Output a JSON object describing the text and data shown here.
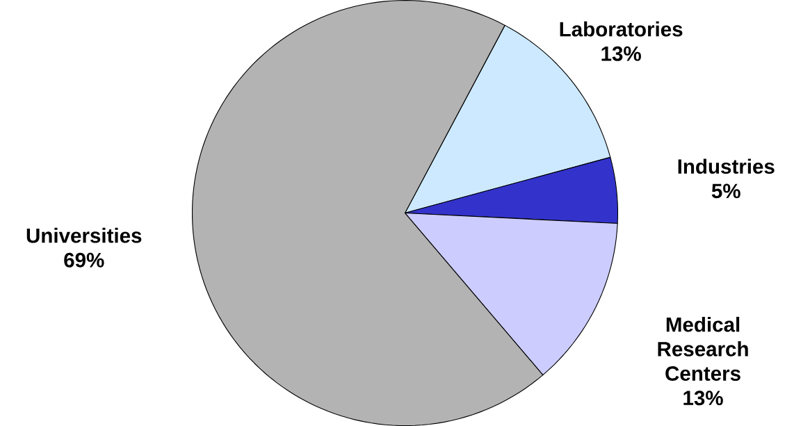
{
  "chart_data": {
    "type": "pie",
    "categories": [
      "Laboratories",
      "Industries",
      "Medical Research Centers",
      "Universities"
    ],
    "values": [
      13,
      5,
      13,
      69
    ],
    "value_labels": [
      "13%",
      "5%",
      "13%",
      "69%"
    ],
    "colors": [
      "#cce9ff",
      "#3333cc",
      "#ccccff",
      "#b3b3b3"
    ]
  }
}
